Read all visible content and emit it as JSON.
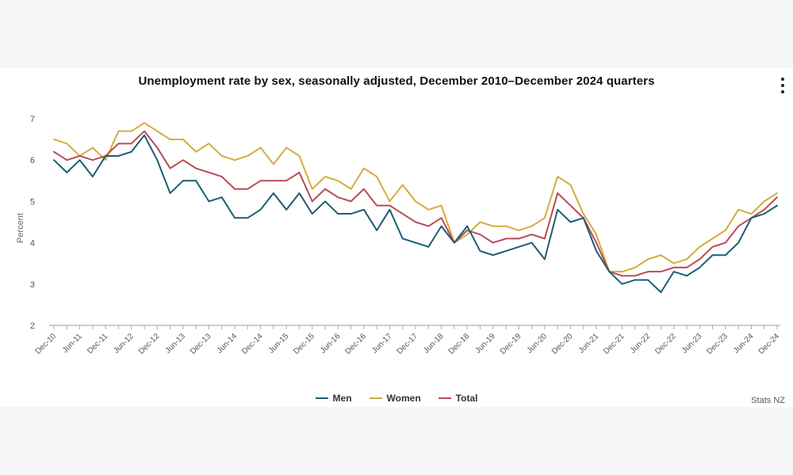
{
  "page": {
    "title": "Unemployment rate by sex, seasonally adjusted, December 2010–December 2024 quarters",
    "source": "Stats NZ",
    "menu_icon": "kebab-menu-icon"
  },
  "chart_data": {
    "type": "line",
    "title": "Unemployment rate by sex, seasonally adjusted, December 2010–December 2024 quarters",
    "ylabel": "Percent",
    "xlabel": "",
    "ylim": [
      2,
      7
    ],
    "yticks": [
      2,
      3,
      4,
      5,
      6,
      7
    ],
    "grid": false,
    "legend": "bottom-center",
    "x": [
      "Dec-10",
      "Mar-11",
      "Jun-11",
      "Sep-11",
      "Dec-11",
      "Mar-12",
      "Jun-12",
      "Sep-12",
      "Dec-12",
      "Mar-13",
      "Jun-13",
      "Sep-13",
      "Dec-13",
      "Mar-14",
      "Jun-14",
      "Sep-14",
      "Dec-14",
      "Mar-15",
      "Jun-15",
      "Sep-15",
      "Dec-15",
      "Mar-16",
      "Jun-16",
      "Sep-16",
      "Dec-16",
      "Mar-17",
      "Jun-17",
      "Sep-17",
      "Dec-17",
      "Mar-18",
      "Jun-18",
      "Sep-18",
      "Dec-18",
      "Mar-19",
      "Jun-19",
      "Sep-19",
      "Dec-19",
      "Mar-20",
      "Jun-20",
      "Sep-20",
      "Dec-20",
      "Mar-21",
      "Jun-21",
      "Sep-21",
      "Dec-21",
      "Mar-22",
      "Jun-22",
      "Sep-22",
      "Dec-22",
      "Mar-23",
      "Jun-23",
      "Sep-23",
      "Dec-23",
      "Mar-24",
      "Jun-24",
      "Sep-24",
      "Dec-24"
    ],
    "x_tick_labels": [
      "Dec-10",
      "Jun-11",
      "Dec-11",
      "Jun-12",
      "Dec-12",
      "Jun-13",
      "Dec-13",
      "Jun-14",
      "Dec-14",
      "Jun-15",
      "Dec-15",
      "Jun-16",
      "Dec-16",
      "Jun-17",
      "Dec-17",
      "Jun-18",
      "Dec-18",
      "Jun-19",
      "Dec-19",
      "Jun-20",
      "Dec-20",
      "Jun-21",
      "Dec-21",
      "Jun-22",
      "Dec-22",
      "Jun-23",
      "Dec-23",
      "Jun-24",
      "Dec-24"
    ],
    "series": [
      {
        "name": "Men",
        "color": "#1b5e73",
        "values": [
          6.0,
          5.7,
          6.0,
          5.6,
          6.1,
          6.1,
          6.2,
          6.6,
          6.0,
          5.2,
          5.5,
          5.5,
          5.0,
          5.1,
          4.6,
          4.6,
          4.8,
          5.2,
          4.8,
          5.2,
          4.7,
          5.0,
          4.7,
          4.7,
          4.8,
          4.3,
          4.8,
          4.1,
          4.0,
          3.9,
          4.4,
          4.0,
          4.4,
          3.8,
          3.7,
          3.8,
          3.9,
          4.0,
          3.6,
          4.8,
          4.5,
          4.6,
          3.8,
          3.3,
          3.0,
          3.1,
          3.1,
          2.8,
          3.3,
          3.2,
          3.4,
          3.7,
          3.7,
          4.0,
          4.6,
          4.7,
          4.9
        ]
      },
      {
        "name": "Women",
        "color": "#d4ad3d",
        "values": [
          6.5,
          6.4,
          6.1,
          6.3,
          6.0,
          6.7,
          6.7,
          6.9,
          6.7,
          6.5,
          6.5,
          6.2,
          6.4,
          6.1,
          6.0,
          6.1,
          6.3,
          5.9,
          6.3,
          6.1,
          5.3,
          5.6,
          5.5,
          5.3,
          5.8,
          5.6,
          5.0,
          5.4,
          5.0,
          4.8,
          4.9,
          4.0,
          4.2,
          4.5,
          4.4,
          4.4,
          4.3,
          4.4,
          4.6,
          5.6,
          5.4,
          4.7,
          4.2,
          3.3,
          3.3,
          3.4,
          3.6,
          3.7,
          3.5,
          3.6,
          3.9,
          4.1,
          4.3,
          4.8,
          4.7,
          5.0,
          5.2
        ]
      },
      {
        "name": "Total",
        "color": "#b84c55",
        "values": [
          6.2,
          6.0,
          6.1,
          6.0,
          6.1,
          6.4,
          6.4,
          6.7,
          6.3,
          5.8,
          6.0,
          5.8,
          5.7,
          5.6,
          5.3,
          5.3,
          5.5,
          5.5,
          5.5,
          5.7,
          5.0,
          5.3,
          5.1,
          5.0,
          5.3,
          4.9,
          4.9,
          4.7,
          4.5,
          4.4,
          4.6,
          4.0,
          4.3,
          4.2,
          4.0,
          4.1,
          4.1,
          4.2,
          4.1,
          5.2,
          4.9,
          4.6,
          4.0,
          3.3,
          3.2,
          3.2,
          3.3,
          3.3,
          3.4,
          3.4,
          3.6,
          3.9,
          4.0,
          4.4,
          4.6,
          4.8,
          5.1
        ]
      }
    ]
  }
}
